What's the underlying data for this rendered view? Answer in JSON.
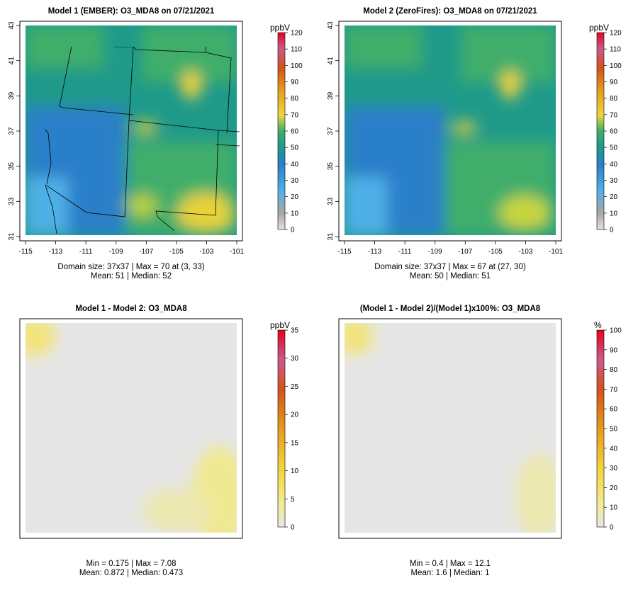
{
  "panels": [
    {
      "id": "model1",
      "title": "Model 1 (EMBER): O3_MDA8 on 07/21/2021",
      "colorbar_unit": "ppbV",
      "colorbar_ticks": [
        "0",
        "10",
        "20",
        "30",
        "40",
        "50",
        "60",
        "70",
        "80",
        "90",
        "100",
        "110",
        "120"
      ],
      "colorbar_max": 120,
      "palette": "viridis-like",
      "lon_ticks": [
        "-115",
        "-113",
        "-111",
        "-109",
        "-107",
        "-105",
        "-103",
        "-101"
      ],
      "lat_ticks": [
        "31",
        "33",
        "35",
        "37",
        "39",
        "41",
        "43"
      ],
      "stats_line1": "Domain size: 37x37 | Max = 70 at (3, 33)",
      "stats_line2": "Mean: 51 |  Median: 52"
    },
    {
      "id": "model2",
      "title": "Model 2 (ZeroFires): O3_MDA8 on 07/21/2021",
      "colorbar_unit": "ppbV",
      "colorbar_ticks": [
        "0",
        "10",
        "20",
        "30",
        "40",
        "50",
        "60",
        "70",
        "80",
        "90",
        "100",
        "110",
        "120"
      ],
      "colorbar_max": 120,
      "palette": "viridis-like",
      "lon_ticks": [
        "-115",
        "-113",
        "-111",
        "-109",
        "-107",
        "-105",
        "-103",
        "-101"
      ],
      "lat_ticks": [
        "31",
        "33",
        "35",
        "37",
        "39",
        "41",
        "43"
      ],
      "stats_line1": "Domain size: 37x37 | Max = 67 at (27, 30)",
      "stats_line2": "Mean: 50 |  Median: 51"
    },
    {
      "id": "diff",
      "title": "Model 1 - Model 2: O3_MDA8",
      "colorbar_unit": "ppbV",
      "colorbar_ticks": [
        "0",
        "5",
        "10",
        "15",
        "20",
        "25",
        "30",
        "35"
      ],
      "colorbar_max": 35,
      "palette": "grey-yellow-red",
      "stats_line1": "Min = 0.175 | Max = 7.08",
      "stats_line2": "Mean: 0.872 |  Median: 0.473"
    },
    {
      "id": "pct",
      "title": "(Model 1 - Model 2)/(Model 1)x100%: O3_MDA8",
      "colorbar_unit": "%",
      "colorbar_ticks": [
        "0",
        "10",
        "20",
        "30",
        "40",
        "50",
        "60",
        "70",
        "80",
        "90",
        "100"
      ],
      "colorbar_max": 100,
      "palette": "grey-yellow-red",
      "stats_line1": "Min = 0.4 | Max = 12.1",
      "stats_line2": "Mean: 1.6 |  Median: 1"
    }
  ],
  "colors": {
    "low_blue": "#2a7fc9",
    "mid_teal": "#1f9a8a",
    "mid_green": "#3fae6a",
    "high_yellow": "#f0d43a",
    "max_red": "#e8001e",
    "zero_grey": "#e6e6e6"
  }
}
